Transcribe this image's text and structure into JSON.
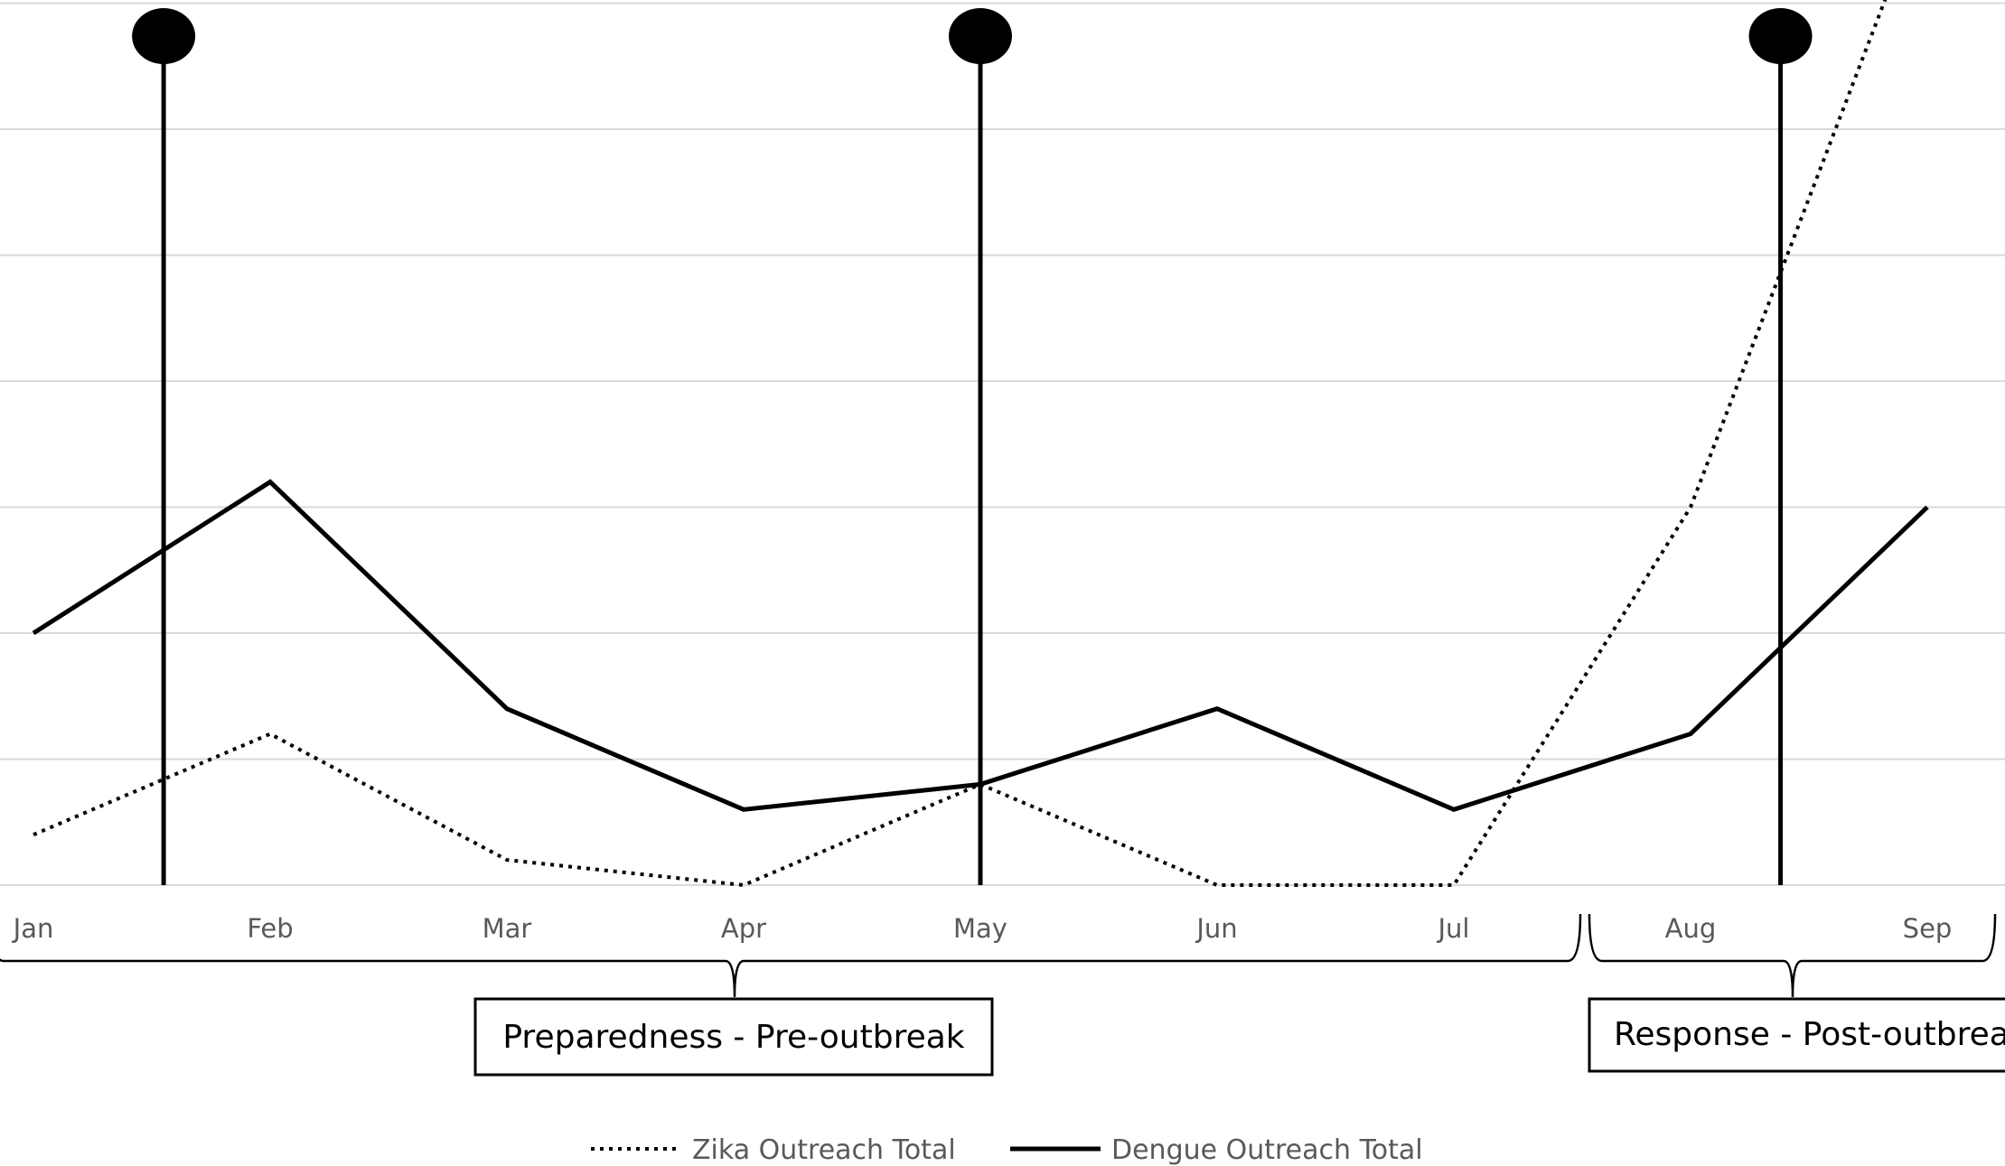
{
  "chart_data": {
    "type": "line",
    "title": "",
    "xlabel": "",
    "ylabel": "",
    "categories": [
      "Jan",
      "Feb",
      "Mar",
      "Apr",
      "May",
      "Jun",
      "Jul",
      "Aug",
      "Sep"
    ],
    "ylim": [
      0,
      7
    ],
    "grid": true,
    "series": [
      {
        "name": "Zika Outreach Total",
        "style": "dotted",
        "color": "#000000",
        "values": [
          0.4,
          1.2,
          0.2,
          0.0,
          0.8,
          0.0,
          0.0,
          3.0,
          7.9
        ]
      },
      {
        "name": "Dengue Outreach Total",
        "style": "solid",
        "color": "#000000",
        "values": [
          2.0,
          3.2,
          1.4,
          0.6,
          0.8,
          1.4,
          0.6,
          1.2,
          3.0
        ]
      }
    ],
    "event_markers": [
      {
        "x": 0.55
      },
      {
        "x": 4.0
      },
      {
        "x": 7.38
      }
    ],
    "phases": [
      {
        "label": "Preparedness - Pre-outbreak",
        "from": "Jan",
        "to": "Jul"
      },
      {
        "label": "Response - Post-outbrea",
        "from": "Aug",
        "to": "Sep"
      }
    ],
    "legend_position": "bottom"
  },
  "colors": {
    "grid": "#d9d9d9",
    "ink": "#000000",
    "tick_text": "#595959"
  }
}
